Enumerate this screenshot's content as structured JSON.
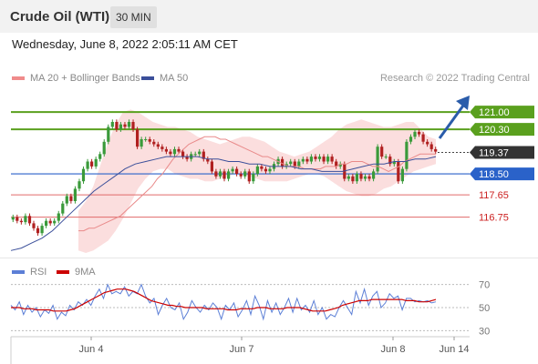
{
  "header": {
    "title": "Crude Oil (WTI)",
    "timeframe": "30 MIN"
  },
  "datetime": "Wednesday, June 8, 2022 2:05:11 AM CET",
  "legend": {
    "ma20_label": "MA 20 + Bollinger Bands",
    "ma50_label": "MA 50",
    "credit": "Research © 2022 Trading Central"
  },
  "colors": {
    "up": "#3a9a3a",
    "down": "#b02020",
    "bollinger": "#fbdede",
    "ma20": "#e98a8a",
    "ma50": "#3b4f9a",
    "green_level": "#5aa01e",
    "blue_level": "#2a62c9",
    "red_level": "#e06a6a",
    "arrow": "#2a5caa",
    "rsi": "#5c7fd6",
    "rsi_ma": "#cc0000"
  },
  "chart_data": [
    {
      "type": "line",
      "title": "",
      "ylim": [
        115.3,
        122.0
      ],
      "x_ticks": [
        "Jun 4",
        "Jun 7",
        "Jun 8",
        "Jun 14"
      ],
      "levels": [
        {
          "value": 121.0,
          "label": "121.00",
          "kind": "resistance"
        },
        {
          "value": 120.3,
          "label": "120.30",
          "kind": "resistance"
        },
        {
          "value": 119.37,
          "label": "119.37",
          "kind": "current"
        },
        {
          "value": 118.5,
          "label": "118.50",
          "kind": "pivot"
        },
        {
          "value": 117.65,
          "label": "117.65",
          "kind": "support"
        },
        {
          "value": 116.75,
          "label": "116.75",
          "kind": "support"
        }
      ],
      "close": [
        116.75,
        116.6,
        116.55,
        116.8,
        116.5,
        116.3,
        116.1,
        116.4,
        116.6,
        116.5,
        116.6,
        116.9,
        117.3,
        117.6,
        117.4,
        117.9,
        118.2,
        118.7,
        119.0,
        118.8,
        119.1,
        119.3,
        119.8,
        120.4,
        120.6,
        120.3,
        120.5,
        120.4,
        120.6,
        120.3,
        119.6,
        119.9,
        119.9,
        119.8,
        119.7,
        119.6,
        119.5,
        119.4,
        119.3,
        119.5,
        119.4,
        119.2,
        119.1,
        119.3,
        119.3,
        119.4,
        119.1,
        119.0,
        118.6,
        118.4,
        118.6,
        118.3,
        118.6,
        118.7,
        118.5,
        118.4,
        118.6,
        118.2,
        118.5,
        118.8,
        118.7,
        118.6,
        118.7,
        118.9,
        119.1,
        118.8,
        118.9,
        119.0,
        118.8,
        119.0,
        119.1,
        119.0,
        119.2,
        119.1,
        119.2,
        119.0,
        119.2,
        119.0,
        118.8,
        118.9,
        118.3,
        118.4,
        118.2,
        118.5,
        118.3,
        118.4,
        118.3,
        118.6,
        119.6,
        119.2,
        119.2,
        118.9,
        119.0,
        118.2,
        118.7,
        119.8,
        120.0,
        120.2,
        120.1,
        119.8,
        119.7,
        119.5,
        119.4
      ],
      "ma20": [
        116.2,
        116.2,
        116.3,
        116.3,
        116.4,
        116.5,
        116.6,
        116.7,
        116.8,
        117.0,
        117.2,
        117.4,
        117.6,
        117.8,
        118.0,
        118.3,
        118.5,
        118.8,
        119.1,
        119.3,
        119.5,
        119.7,
        119.8,
        119.9,
        120.0,
        120.0,
        120.0,
        119.9,
        119.9,
        119.8,
        119.7,
        119.6,
        119.5,
        119.4,
        119.3,
        119.2,
        119.2,
        119.1,
        119.0,
        118.9,
        118.8,
        118.8,
        118.8,
        118.7,
        118.7,
        118.7,
        118.7,
        118.8,
        118.8,
        118.8,
        118.9,
        118.9,
        119.0,
        119.0,
        119.0,
        118.9,
        118.8,
        118.8,
        118.7,
        118.6,
        118.7,
        118.8,
        119.0,
        119.1,
        119.2,
        119.3,
        119.3,
        119.3,
        119.3
      ],
      "ma50": [
        115.4,
        115.5,
        115.7,
        115.9,
        116.2,
        116.6,
        117.0,
        117.4,
        117.8,
        118.1,
        118.4,
        118.7,
        118.9,
        119.0,
        119.1,
        119.2,
        119.2,
        119.2,
        119.2,
        119.1,
        119.1,
        119.0,
        119.0,
        118.9,
        118.9,
        118.8,
        118.8,
        118.8,
        118.7,
        118.7,
        118.6,
        118.6,
        118.6,
        118.7,
        118.8,
        118.9,
        118.9,
        119.0,
        119.0,
        119.1,
        119.1,
        119.2
      ],
      "bb_upper": [
        117.0,
        117.4,
        118.0,
        118.9,
        119.8,
        120.5,
        121.0,
        121.1,
        121.0,
        120.8,
        120.6,
        120.5,
        120.4,
        120.4,
        120.3,
        120.2,
        120.0,
        119.9,
        119.8,
        119.7,
        119.8,
        119.9,
        120.0,
        120.0,
        119.9,
        119.8,
        119.6,
        119.4,
        119.3,
        119.2,
        119.3,
        119.4,
        119.6,
        119.8,
        120.0,
        120.3,
        120.5,
        120.6,
        120.7,
        120.6,
        120.5,
        120.4,
        120.4,
        120.5,
        120.6,
        120.6,
        120.3,
        120.0,
        119.9
      ],
      "bb_lower": [
        115.4,
        115.3,
        115.4,
        115.6,
        115.8,
        116.2,
        116.7,
        117.3,
        117.9,
        118.3,
        118.6,
        118.7,
        118.7,
        118.5,
        118.4,
        118.3,
        118.3,
        118.2,
        118.2,
        118.3,
        118.4,
        118.5,
        118.5,
        118.4,
        118.3,
        118.2,
        118.2,
        118.2,
        118.2,
        118.3,
        118.4,
        118.5,
        118.5,
        118.4,
        118.2,
        118.0,
        117.8,
        117.7,
        117.6,
        117.6,
        117.7,
        117.9,
        118.0,
        118.2,
        118.4,
        118.6,
        118.7,
        118.8,
        118.9
      ]
    },
    {
      "type": "line",
      "title": "",
      "ylim": [
        20,
        80
      ],
      "y_ticks": [
        70,
        50,
        30
      ],
      "series": [
        {
          "name": "RSI",
          "values": [
            52,
            48,
            55,
            44,
            52,
            46,
            50,
            42,
            48,
            45,
            52,
            40,
            46,
            43,
            52,
            48,
            55,
            52,
            57,
            52,
            60,
            66,
            58,
            70,
            62,
            64,
            62,
            68,
            60,
            64,
            62,
            70,
            60,
            54,
            58,
            44,
            52,
            58,
            50,
            48,
            54,
            40,
            46,
            56,
            50,
            46,
            52,
            48,
            54,
            50,
            40,
            52,
            48,
            54,
            42,
            48,
            56,
            44,
            60,
            52,
            40,
            56,
            46,
            54,
            44,
            50,
            58,
            46,
            58,
            48,
            52,
            46,
            56,
            44,
            50,
            40,
            44,
            42,
            50,
            56,
            50,
            44,
            64,
            54,
            66,
            52,
            60,
            64,
            50,
            54,
            62,
            58,
            60,
            48,
            58,
            58,
            55,
            56,
            55,
            56,
            54,
            55
          ]
        },
        {
          "name": "9MA",
          "values": [
            50,
            50,
            50,
            49,
            49,
            49,
            48,
            48,
            48,
            48,
            47,
            47,
            47,
            47,
            48,
            49,
            51,
            53,
            55,
            57,
            59,
            61,
            63,
            64,
            65,
            66,
            66,
            66,
            65,
            64,
            62,
            60,
            58,
            56,
            55,
            54,
            53,
            52,
            52,
            51,
            51,
            50,
            50,
            50,
            50,
            50,
            49,
            49,
            49,
            49,
            49,
            48,
            48,
            48,
            49,
            49,
            49,
            49,
            50,
            50,
            50,
            49,
            49,
            49,
            49,
            50,
            50,
            50,
            50,
            49,
            48,
            47,
            47,
            47,
            47,
            48,
            49,
            50,
            52,
            53,
            54,
            55,
            56,
            56,
            56,
            57,
            57,
            57,
            57,
            57,
            57,
            57,
            57,
            56,
            56,
            56,
            55,
            55,
            55,
            56,
            57
          ]
        }
      ]
    }
  ]
}
